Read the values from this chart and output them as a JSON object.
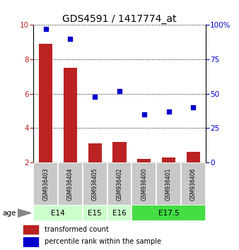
{
  "title": "GDS4591 / 1417774_at",
  "samples": [
    "GSM936403",
    "GSM936404",
    "GSM936405",
    "GSM936402",
    "GSM936400",
    "GSM936401",
    "GSM936406"
  ],
  "transformed_count": [
    8.9,
    7.5,
    3.1,
    3.2,
    2.2,
    2.3,
    2.6
  ],
  "percentile_rank": [
    97,
    90,
    48,
    52,
    35,
    37,
    40
  ],
  "ylim_left": [
    2,
    10
  ],
  "ylim_right": [
    0,
    100
  ],
  "yticks_left": [
    2,
    4,
    6,
    8,
    10
  ],
  "yticks_right": [
    0,
    25,
    50,
    75,
    100
  ],
  "bar_color": "#bb2222",
  "scatter_color": "#0000cc",
  "age_groups": [
    {
      "label": "E14",
      "samples": [
        0,
        1
      ],
      "color": "#ccffcc"
    },
    {
      "label": "E15",
      "samples": [
        2
      ],
      "color": "#ccffcc"
    },
    {
      "label": "E16",
      "samples": [
        3
      ],
      "color": "#ccffcc"
    },
    {
      "label": "E17.5",
      "samples": [
        4,
        5,
        6
      ],
      "color": "#44dd44"
    }
  ],
  "age_label": "age",
  "legend_bar_label": "transformed count",
  "legend_scatter_label": "percentile rank within the sample",
  "title_fontsize": 10,
  "tick_fontsize": 7.5,
  "bar_width": 0.55
}
